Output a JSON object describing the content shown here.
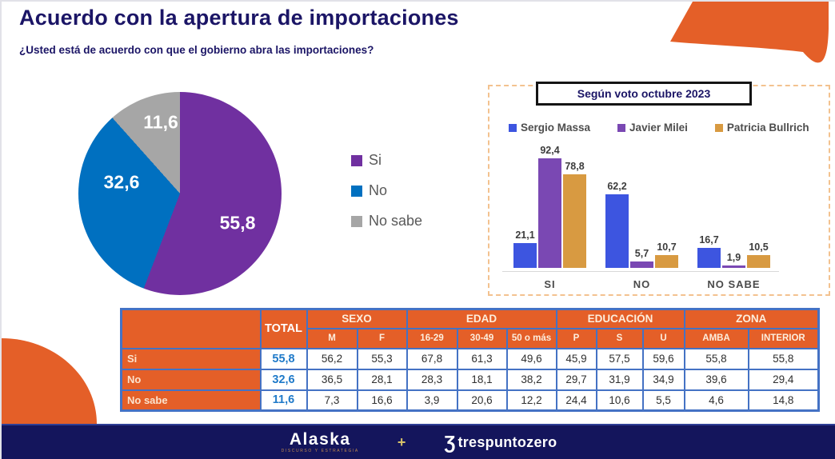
{
  "header": {
    "title": "Acuerdo con la apertura de importaciones",
    "subtitle": "¿Usted está de acuerdo con que el gobierno abra las importaciones?"
  },
  "palette": {
    "accent_orange": "#e45f28",
    "title_navy": "#1b1566",
    "footer_navy": "#14155c",
    "table_border_blue": "#4472c4",
    "total_value_blue": "#1f7ac9"
  },
  "chart_data": [
    {
      "type": "pie",
      "legend_position": "right",
      "slices": [
        {
          "label": "Si",
          "value": 55.8,
          "display": "55,8",
          "color": "#7030a0"
        },
        {
          "label": "No",
          "value": 32.6,
          "display": "32,6",
          "color": "#0070c0"
        },
        {
          "label": "No sabe",
          "value": 11.6,
          "display": "11,6",
          "color": "#a6a6a6"
        }
      ]
    },
    {
      "type": "bar",
      "title": "Según voto octubre 2023",
      "categories": [
        "SI",
        "NO",
        "NO SABE"
      ],
      "ylim": [
        0,
        100
      ],
      "grid": false,
      "legend_position": "top",
      "series": [
        {
          "name": "Sergio Massa",
          "color": "#3d55e0",
          "values": [
            21.1,
            62.2,
            16.7
          ],
          "display": [
            "21,1",
            "62,2",
            "16,7"
          ]
        },
        {
          "name": "Javier Milei",
          "color": "#7a48b3",
          "values": [
            92.4,
            5.7,
            1.9
          ],
          "display": [
            "92,4",
            "5,7",
            "1,9"
          ]
        },
        {
          "name": "Patricia Bullrich",
          "color": "#d89a41",
          "values": [
            78.8,
            10.7,
            10.5
          ],
          "display": [
            "78,8",
            "10,7",
            "10,5"
          ]
        }
      ]
    },
    {
      "type": "table",
      "total_label": "TOTAL",
      "groups": [
        {
          "label": "SEXO",
          "span": 2
        },
        {
          "label": "EDAD",
          "span": 3
        },
        {
          "label": "EDUCACIÓN",
          "span": 3
        },
        {
          "label": "ZONA",
          "span": 2
        }
      ],
      "sub_headers": [
        "M",
        "F",
        "16-29",
        "30-49",
        "50 o más",
        "P",
        "S",
        "U",
        "AMBA",
        "INTERIOR"
      ],
      "rows": [
        {
          "label": "Si",
          "total": "55,8",
          "values": [
            "56,2",
            "55,3",
            "67,8",
            "61,3",
            "49,6",
            "45,9",
            "57,5",
            "59,6",
            "55,8",
            "55,8"
          ]
        },
        {
          "label": "No",
          "total": "32,6",
          "values": [
            "36,5",
            "28,1",
            "28,3",
            "18,1",
            "38,2",
            "29,7",
            "31,9",
            "34,9",
            "39,6",
            "29,4"
          ]
        },
        {
          "label": "No sabe",
          "total": "11,6",
          "values": [
            "7,3",
            "16,6",
            "3,9",
            "20,6",
            "12,2",
            "24,4",
            "10,6",
            "5,5",
            "4,6",
            "14,8"
          ]
        }
      ]
    }
  ],
  "footer": {
    "alaska": "Alaska",
    "alaska_sub": "DISCURSO Y ESTRATEGIA",
    "plus": "+",
    "tpz_glyph": "Ʒ",
    "tpz_name": "trespuntozero"
  }
}
